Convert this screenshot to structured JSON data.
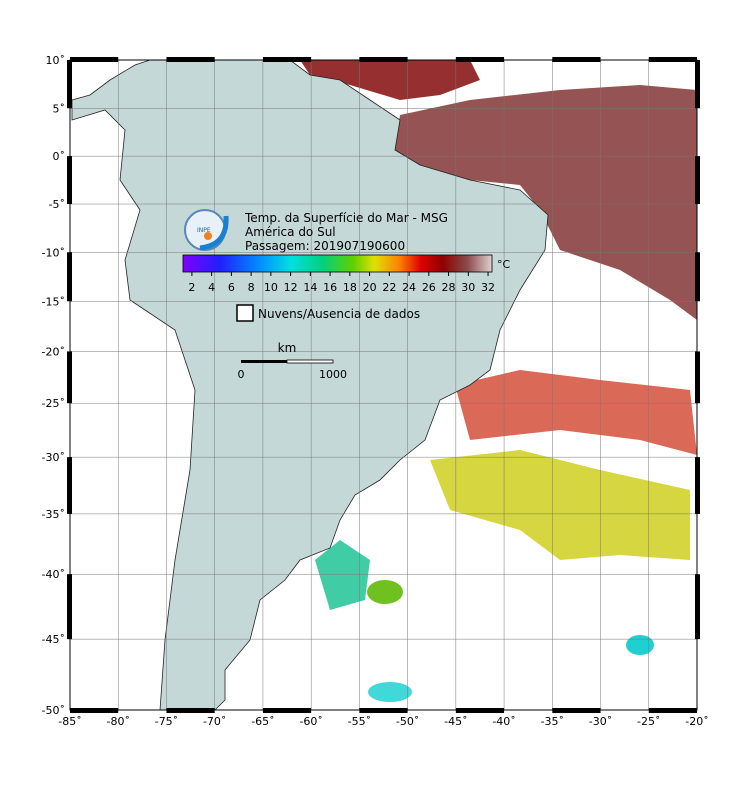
{
  "map": {
    "title_lines": [
      "Temp. da Superfície do Mar - MSG",
      "América do Sul",
      "Passagem: 201907190600"
    ],
    "logo_text": "INPE",
    "xticks": [
      {
        "value": -85,
        "label": "-85˚"
      },
      {
        "value": -80,
        "label": "-80˚"
      },
      {
        "value": -75,
        "label": "-75˚"
      },
      {
        "value": -70,
        "label": "-70˚"
      },
      {
        "value": -65,
        "label": "-65˚"
      },
      {
        "value": -60,
        "label": "-60˚"
      },
      {
        "value": -55,
        "label": "-55˚"
      },
      {
        "value": -50,
        "label": "-50˚"
      },
      {
        "value": -45,
        "label": "-45˚"
      },
      {
        "value": -40,
        "label": "-40˚"
      },
      {
        "value": -35,
        "label": "-35˚"
      },
      {
        "value": -30,
        "label": "-30˚"
      },
      {
        "value": -25,
        "label": "-25˚"
      },
      {
        "value": -20,
        "label": "-20˚"
      }
    ],
    "yticks": [
      {
        "value": 10,
        "label": "10˚"
      },
      {
        "value": 5,
        "label": "5˚"
      },
      {
        "value": 0,
        "label": "0˚"
      },
      {
        "value": -5,
        "label": "-5˚"
      },
      {
        "value": -10,
        "label": "-10˚"
      },
      {
        "value": -15,
        "label": "-15˚"
      },
      {
        "value": -20,
        "label": "-20˚"
      },
      {
        "value": -25,
        "label": "-25˚"
      },
      {
        "value": -30,
        "label": "-30˚"
      },
      {
        "value": -35,
        "label": "-35˚"
      },
      {
        "value": -40,
        "label": "-40˚"
      },
      {
        "value": -45,
        "label": "-45˚"
      },
      {
        "value": -50,
        "label": "-50˚"
      }
    ],
    "xlim": [
      -85,
      -20
    ],
    "ylim": [
      -50,
      10
    ],
    "colorbar": {
      "ticks": [
        2,
        4,
        6,
        8,
        10,
        12,
        14,
        16,
        18,
        20,
        22,
        24,
        26,
        28,
        30,
        32
      ],
      "lim": [
        1.1,
        32.4
      ],
      "unit": "°C"
    },
    "legend": "Nuvens/Ausencia de dados",
    "scale": {
      "unit": "km",
      "labels": [
        0,
        1000
      ]
    }
  }
}
